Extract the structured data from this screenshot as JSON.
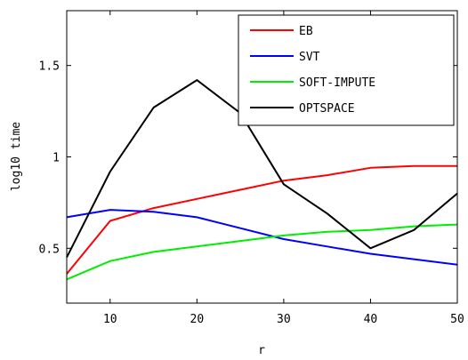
{
  "chart_data": {
    "type": "line",
    "title": "",
    "xlabel": "r",
    "ylabel": "log10 time",
    "xlim": [
      5,
      50
    ],
    "ylim": [
      0.2,
      1.8
    ],
    "xticks": [
      10,
      20,
      30,
      40,
      50
    ],
    "yticks": [
      0.5,
      1,
      1.5
    ],
    "xtick_labels": [
      "10",
      "20",
      "30",
      "40",
      "50"
    ],
    "ytick_labels": [
      "0.5",
      "1",
      "1.5"
    ],
    "grid": false,
    "legend_position": "top-right",
    "x": [
      5,
      10,
      15,
      20,
      25,
      30,
      35,
      40,
      45,
      50
    ],
    "series": [
      {
        "name": "EB",
        "color": "#ff0000",
        "values": [
          0.36,
          0.65,
          0.72,
          0.77,
          0.82,
          0.87,
          0.9,
          0.94,
          0.95,
          0.95
        ]
      },
      {
        "name": "SVT",
        "color": "#0000ff",
        "values": [
          0.67,
          0.71,
          0.7,
          0.67,
          0.61,
          0.55,
          0.51,
          0.47,
          0.44,
          0.41
        ]
      },
      {
        "name": "SOFT-IMPUTE",
        "color": "#00ee00",
        "values": [
          0.33,
          0.43,
          0.48,
          0.51,
          0.54,
          0.57,
          0.59,
          0.6,
          0.62,
          0.63
        ]
      },
      {
        "name": "OPTSPACE",
        "color": "#000000",
        "values": [
          0.45,
          0.92,
          1.27,
          1.42,
          1.24,
          0.85,
          0.69,
          0.5,
          0.6,
          0.8
        ]
      }
    ]
  }
}
